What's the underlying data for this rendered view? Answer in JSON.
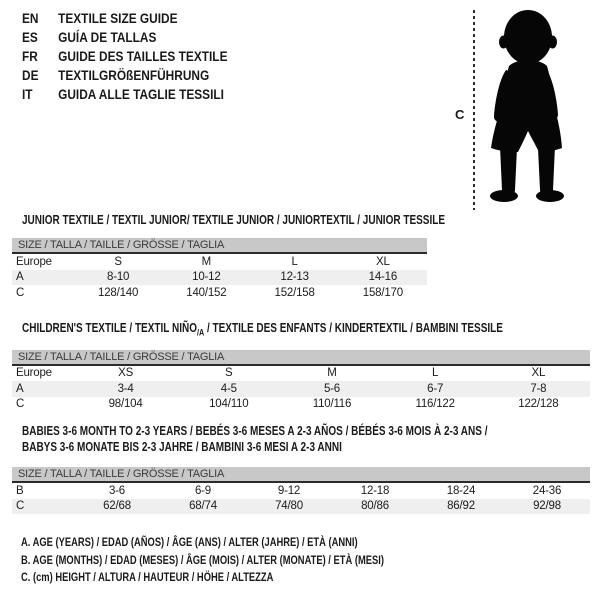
{
  "colors": {
    "size_bar_bg": "#c8c8c8",
    "row_stripe_bg": "#efefef",
    "text": "#1a1a1a",
    "bar_text": "#3a3a3a",
    "silhouette": "#060606"
  },
  "languages": [
    {
      "code": "EN",
      "title": "TEXTILE SIZE GUIDE"
    },
    {
      "code": "ES",
      "title": "GUÍA DE TALLAS"
    },
    {
      "code": "FR",
      "title": "GUIDE DES TAILLES TEXTILE"
    },
    {
      "code": "DE",
      "title": "TEXTILGRÖßENFÜHRUNG"
    },
    {
      "code": "IT",
      "title": "GUIDA ALLE TAGLIE TESSILI"
    }
  ],
  "figure": {
    "marker_label": "C",
    "icon": "baby-toddler-silhouette"
  },
  "size_header": "SIZE / TALLA / TAILLE / GRÖSSE / TAGLIA",
  "tables": [
    {
      "title_lines": [
        [
          {
            "t": "JUNIOR TEXTILE / TEXTIL JUNIOR/ TEXTILE JUNIOR / JUNIORTEXTIL / JUNIOR TESSILE"
          }
        ]
      ],
      "rows": [
        {
          "label": "Europe",
          "values": [
            "S",
            "M",
            "L",
            "XL"
          ]
        },
        {
          "label": "A",
          "values": [
            "8-10",
            "10-12",
            "12-13",
            "14-16"
          ]
        },
        {
          "label": "C",
          "values": [
            "128/140",
            "140/152",
            "152/158",
            "158/170"
          ]
        }
      ]
    },
    {
      "title_lines": [
        [
          {
            "t": "CHILDREN'S TEXTILE / TEXTIL NIÑO"
          },
          {
            "t": "/A",
            "sub": true
          },
          {
            "t": " / TEXTILE DES ENFANTS / KINDERTEXTIL / BAMBINI TESSILE"
          }
        ]
      ],
      "rows": [
        {
          "label": "Europe",
          "values": [
            "XS",
            "S",
            "M",
            "L",
            "XL"
          ]
        },
        {
          "label": "A",
          "values": [
            "3-4",
            "4-5",
            "5-6",
            "6-7",
            "7-8"
          ]
        },
        {
          "label": "C",
          "values": [
            "98/104",
            "104/110",
            "110/116",
            "116/122",
            "122/128"
          ]
        }
      ]
    },
    {
      "title_lines": [
        [
          {
            "t": "BABIES 3-6 MONTH TO 2-3 YEARS / BEBÉS 3-6 MESES A 2-3 AÑOS / BÉBÉS 3-6 MOIS À 2-3 ANS /"
          }
        ],
        [
          {
            "t": "BABYS 3-6 MONATE BIS 2-3 JAHRE / BAMBINI 3-6 MESI A 2-3 ANNI"
          }
        ]
      ],
      "rows": [
        {
          "label": "B",
          "values": [
            "3-6",
            "6-9",
            "9-12",
            "12-18",
            "18-24",
            "24-36"
          ]
        },
        {
          "label": "C",
          "values": [
            "62/68",
            "68/74",
            "74/80",
            "80/86",
            "86/92",
            "92/98"
          ]
        }
      ]
    }
  ],
  "legend": [
    "A. AGE (YEARS) / EDAD (AÑOS) / ÂGE (ANS) / ALTER (JAHRE) / ETÀ (ANNI)",
    "B. AGE (MONTHS) / EDAD (MESES) / ÂGE (MOIS) / ALTER (MONATE) / ETÀ (MESI)",
    "C. (cm) HEIGHT / ALTURA / HAUTEUR / HÖHE / ALTEZZA"
  ]
}
